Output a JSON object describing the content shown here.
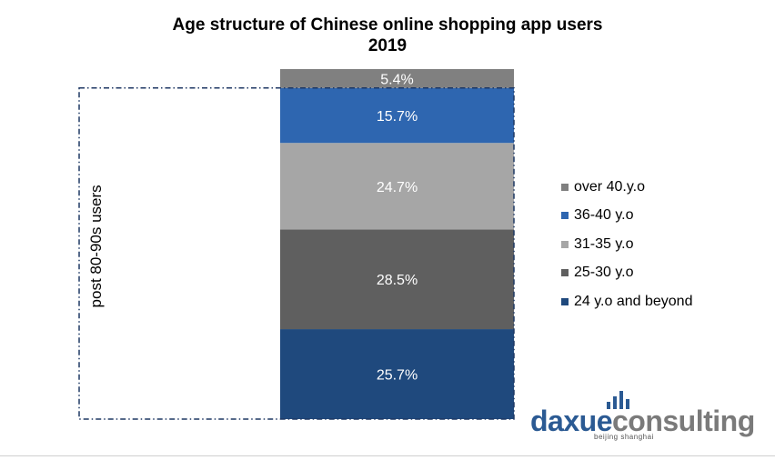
{
  "chart_data": {
    "type": "bar",
    "stacked": true,
    "title": "Age structure of Chinese online shopping app users",
    "subtitle": "2019",
    "categories": [
      "2019"
    ],
    "series": [
      {
        "name": "24 y.o and beyond",
        "values": [
          25.7
        ],
        "label": "25.7%",
        "color": "#1f497d"
      },
      {
        "name": "25-30 y.o",
        "values": [
          28.5
        ],
        "label": "28.5%",
        "color": "#5f5f5f"
      },
      {
        "name": "31-35 y.o",
        "values": [
          24.7
        ],
        "label": "24.7%",
        "color": "#a6a6a6"
      },
      {
        "name": "36-40 y.o",
        "values": [
          15.7
        ],
        "label": "15.7%",
        "color": "#2e66b0"
      },
      {
        "name": "over 40.y.o",
        "values": [
          5.4
        ],
        "label": "5.4%",
        "color": "#808080"
      }
    ],
    "legend_order": [
      "over 40.y.o",
      "36-40 y.o",
      "31-35 y.o",
      "25-30 y.o",
      "24 y.o and beyond"
    ],
    "legend_position": "right",
    "annotation": "post 80-90s users",
    "annotation_color": "#1f3864",
    "ylim": [
      0,
      100
    ],
    "grid": false
  },
  "logo": {
    "part1": "daxue",
    "part2": "consulting",
    "sub": "beijing shanghai"
  }
}
